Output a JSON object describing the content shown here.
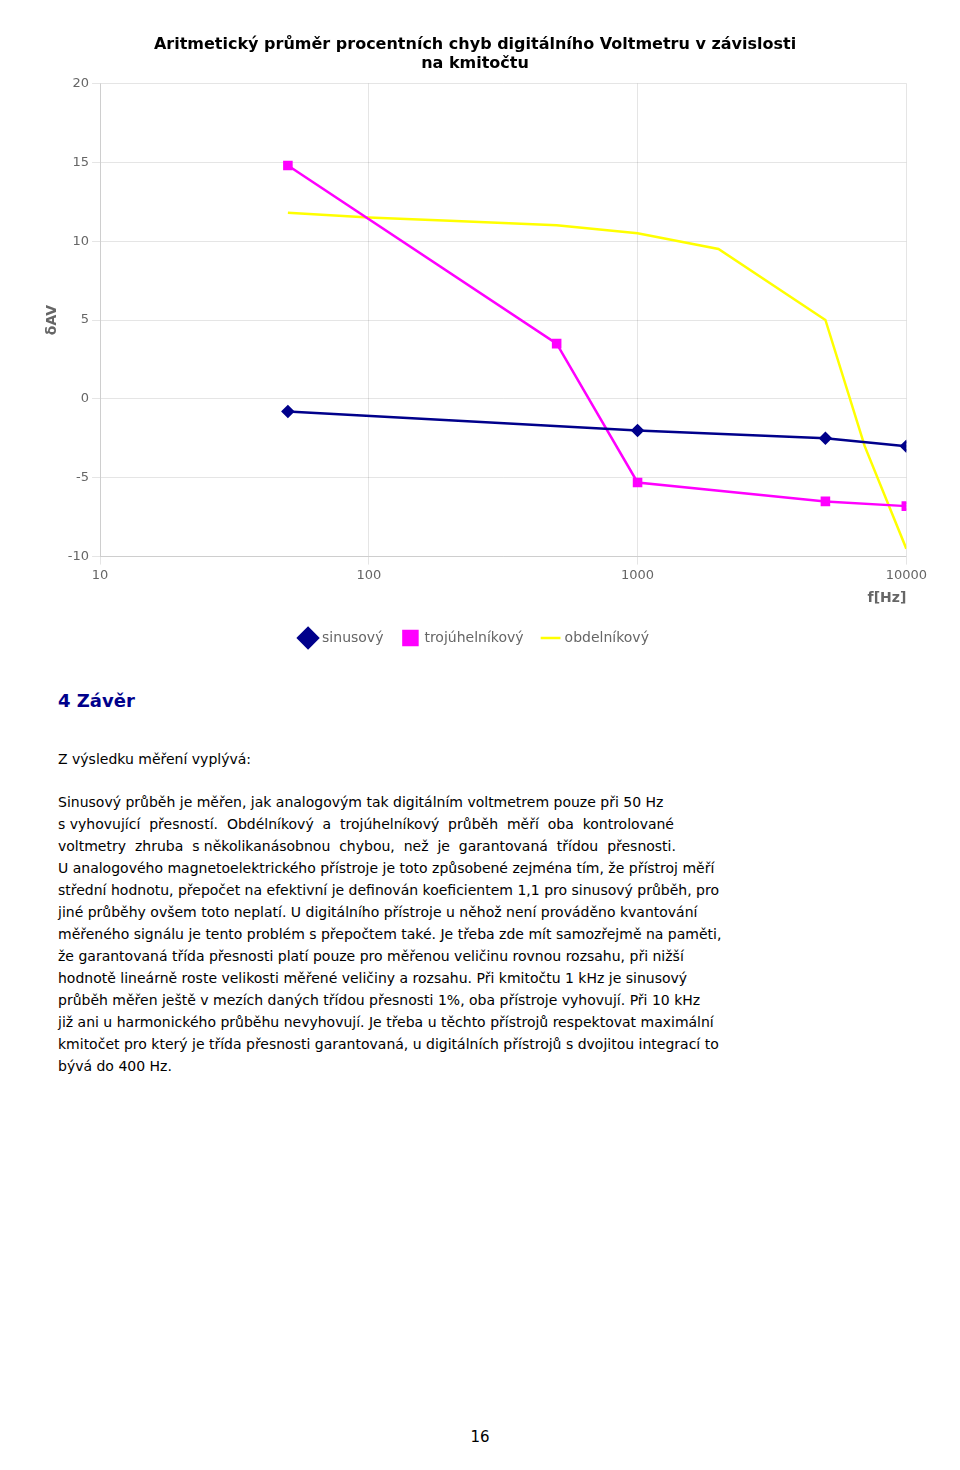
{
  "chart_data": {
    "type": "line",
    "title": "Aritmetický průměr procentních chyb digitálního Voltmetru v závislosti\nna kmitočtu",
    "x_label": "f[Hz]",
    "y_label": "δAV",
    "log": "x",
    "xlim": [
      10,
      10000
    ],
    "xticks": [
      10,
      100,
      1000,
      10000
    ],
    "ylim": [
      -10,
      20
    ],
    "yticks": [
      -10,
      -5,
      0,
      5,
      10,
      15,
      20
    ],
    "grid": true,
    "legend": "bottom",
    "series": [
      {
        "name": "sinusový",
        "color": "#00008B",
        "marker": "diamond",
        "line_style": "solid",
        "x": [
          50,
          1000,
          5000,
          10000
        ],
        "values": [
          -0.8,
          -2.0,
          -2.5,
          -3.0
        ]
      },
      {
        "name": "trojúhelníkový",
        "color": "#FF00FF",
        "marker": "square",
        "line_style": "solid",
        "x": [
          50,
          500,
          1000,
          5000,
          10000
        ],
        "values": [
          14.8,
          3.5,
          -5.3,
          -6.5,
          -6.8
        ]
      },
      {
        "name": "obdelníkový",
        "color": "#FFFF00",
        "marker": "none",
        "line_style": "solid",
        "x": [
          50,
          100,
          200,
          500,
          1000,
          2000,
          5000,
          7000,
          10000
        ],
        "values": [
          11.8,
          11.5,
          11.3,
          11.0,
          10.5,
          9.5,
          5.0,
          -3.0,
          -9.5
        ]
      }
    ]
  },
  "page_text": {
    "section_title": "4   Závěr",
    "section_title_color": "#00008B",
    "paragraphs": [
      "Z výsledku měření vyplývá:",
      "Sinusový průběh je měřen, jak analogovým tak digitálním voltmetrem pouze při 50 Hz",
      "s vyhovující  přesností.  Obdélníkový  a  trojúhelníkový  průběh  měří  oba  kontrolované",
      "voltmetry  zhruba  s několikanásobnou  chybou,  než  je  garantovaná  třídou  přesnosti.",
      "U analogového magnetoelektrického přístroje je toto způsobené zejména tím, že přístroj měří",
      "střední hodnotu, přepočet na efektivní je definován koeficientem 1,1 pro sinusový průběh, pro",
      "jiné průběhy ovšem toto neplatí. U digitálního přístroje u něhož není prováděno kvantování",
      "měřeného signálu je tento problém s přepočtem také. Je třeba zde mít samozřejmě na paměti,",
      "že garantovaná třída přesnosti platí pouze pro měřenou veličinu rovnou rozsahu, při nižší",
      "hodnotě lineárně roste velikosti měřené veličiny a rozsahu. Při kmitočtu 1 kHz je sinusový",
      "průběh měřen ještě v mezích daných třídou přesnosti 1%, oba přístroje vyhovují. Při 10 kHz",
      "již ani u harmonického průběhu nevyhovují. Je třeba u těchto přístrojů respektovat maximální",
      "kmitočet pro který je třída přesnosti garantovaná, u digitálních přístrojů s dvojitou integrací to",
      "bývá do 400 Hz."
    ],
    "page_number": "16"
  }
}
